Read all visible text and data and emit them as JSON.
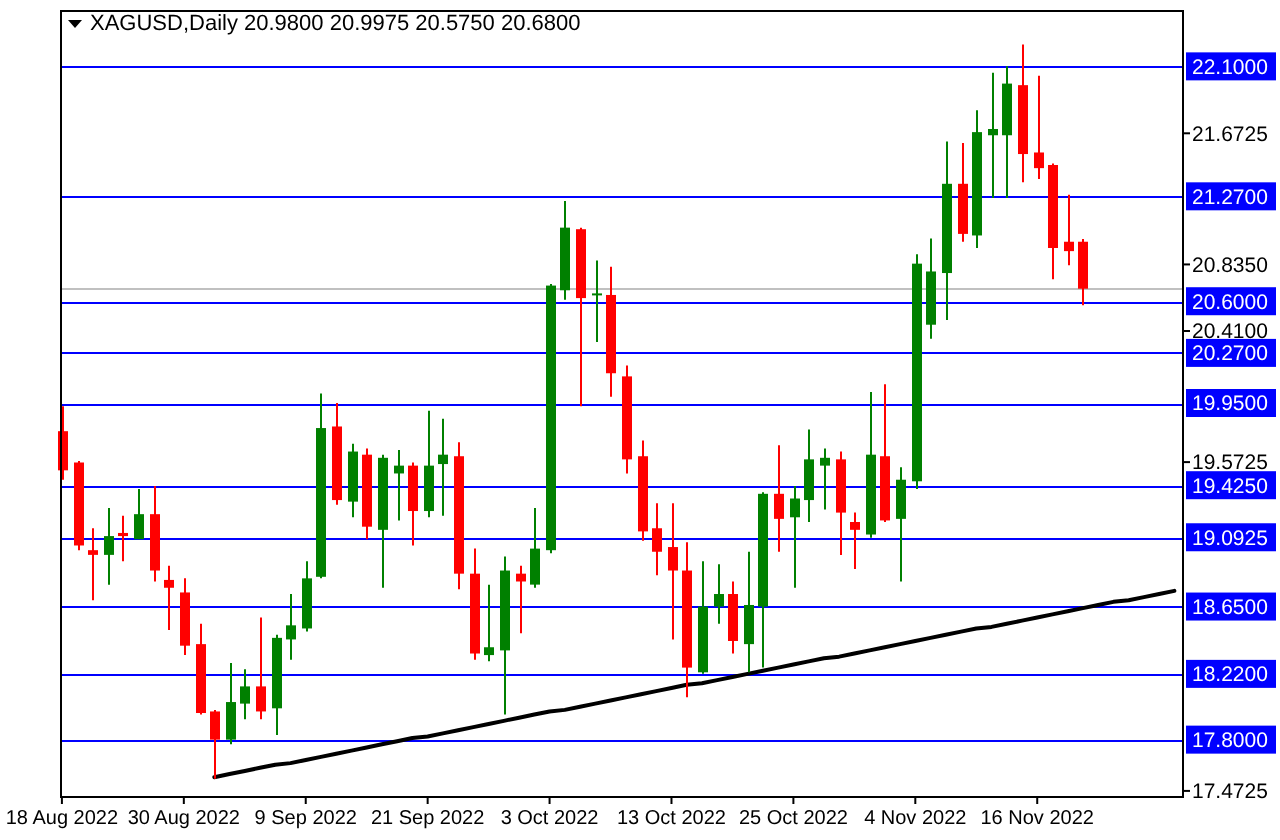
{
  "chart_data": {
    "type": "candlestick",
    "title": "XAGUSD,Daily 20.9800 20.9975 20.5750 20.6800",
    "categories": [
      "18 Aug 2022",
      null,
      null,
      null,
      null,
      null,
      null,
      null,
      "30 Aug 2022",
      null,
      null,
      null,
      null,
      null,
      null,
      null,
      "9 Sep 2022",
      null,
      null,
      null,
      null,
      null,
      null,
      null,
      "21 Sep 2022",
      null,
      null,
      null,
      null,
      null,
      null,
      null,
      "3 Oct 2022",
      null,
      null,
      null,
      null,
      null,
      null,
      null,
      "13 Oct 2022",
      null,
      null,
      null,
      null,
      null,
      null,
      null,
      "25 Oct 2022",
      null,
      null,
      null,
      null,
      null,
      null,
      null,
      "4 Nov 2022",
      null,
      null,
      null,
      null,
      null,
      null,
      null,
      "16 Nov 2022",
      null,
      null,
      null,
      null,
      null,
      null,
      null,
      null,
      null
    ],
    "ohlc": [
      [
        19.77,
        19.93,
        19.46,
        19.52
      ],
      [
        19.57,
        19.58,
        19.01,
        19.04
      ],
      [
        19.01,
        19.15,
        18.69,
        18.98
      ],
      [
        18.98,
        19.28,
        18.79,
        19.1
      ],
      [
        19.12,
        19.23,
        18.94,
        19.1
      ],
      [
        19.08,
        19.4,
        19.08,
        19.24
      ],
      [
        19.24,
        19.42,
        18.81,
        18.88
      ],
      [
        18.82,
        18.91,
        18.5,
        18.77
      ],
      [
        18.74,
        18.83,
        18.34,
        18.4
      ],
      [
        18.41,
        18.54,
        17.96,
        17.97
      ],
      [
        17.98,
        17.99,
        17.55,
        17.8
      ],
      [
        17.8,
        18.29,
        17.77,
        18.04
      ],
      [
        18.03,
        18.25,
        17.93,
        18.14
      ],
      [
        18.14,
        18.58,
        17.93,
        17.98
      ],
      [
        18.0,
        18.47,
        17.83,
        18.45
      ],
      [
        18.44,
        18.73,
        18.31,
        18.53
      ],
      [
        18.51,
        18.94,
        18.49,
        18.83
      ],
      [
        18.84,
        20.01,
        18.83,
        19.79
      ],
      [
        19.8,
        19.95,
        19.3,
        19.33
      ],
      [
        19.32,
        19.69,
        19.22,
        19.64
      ],
      [
        19.62,
        19.66,
        19.08,
        19.16
      ],
      [
        19.14,
        19.62,
        18.77,
        19.6
      ],
      [
        19.5,
        19.65,
        19.2,
        19.55
      ],
      [
        19.55,
        19.57,
        19.04,
        19.26
      ],
      [
        19.26,
        19.9,
        19.22,
        19.55
      ],
      [
        19.56,
        19.85,
        19.23,
        19.62
      ],
      [
        19.61,
        19.7,
        18.76,
        18.86
      ],
      [
        18.86,
        19.02,
        18.31,
        18.35
      ],
      [
        18.34,
        18.79,
        18.3,
        18.39
      ],
      [
        18.37,
        18.97,
        17.96,
        18.88
      ],
      [
        18.86,
        18.91,
        18.48,
        18.81
      ],
      [
        18.79,
        19.28,
        18.77,
        19.02
      ],
      [
        19.01,
        20.71,
        18.99,
        20.7
      ],
      [
        20.67,
        21.24,
        20.61,
        21.07
      ],
      [
        21.06,
        21.07,
        19.93,
        20.62
      ],
      [
        20.64,
        20.86,
        20.34,
        20.65
      ],
      [
        20.64,
        20.82,
        19.99,
        20.14
      ],
      [
        20.12,
        20.19,
        19.5,
        19.59
      ],
      [
        19.61,
        19.71,
        19.07,
        19.13
      ],
      [
        19.15,
        19.31,
        18.85,
        19.0
      ],
      [
        19.03,
        19.31,
        18.44,
        18.88
      ],
      [
        18.88,
        19.06,
        18.07,
        18.26
      ],
      [
        18.23,
        18.94,
        18.22,
        18.65
      ],
      [
        18.65,
        18.92,
        18.54,
        18.73
      ],
      [
        18.73,
        18.81,
        18.35,
        18.43
      ],
      [
        18.41,
        19.0,
        18.23,
        18.66
      ],
      [
        18.65,
        19.38,
        18.26,
        19.37
      ],
      [
        19.37,
        19.68,
        19.0,
        19.21
      ],
      [
        19.22,
        19.42,
        18.77,
        19.34
      ],
      [
        19.33,
        19.78,
        19.19,
        19.59
      ],
      [
        19.55,
        19.66,
        19.27,
        19.6
      ],
      [
        19.59,
        19.64,
        18.98,
        19.25
      ],
      [
        19.19,
        19.25,
        18.89,
        19.14
      ],
      [
        19.11,
        20.02,
        19.09,
        19.62
      ],
      [
        19.61,
        20.07,
        19.19,
        19.2
      ],
      [
        19.21,
        19.54,
        18.81,
        19.46
      ],
      [
        19.45,
        20.9,
        19.4,
        20.84
      ],
      [
        20.45,
        21.0,
        20.36,
        20.79
      ],
      [
        20.78,
        21.62,
        20.48,
        21.35
      ],
      [
        21.35,
        21.61,
        20.98,
        21.03
      ],
      [
        21.02,
        21.82,
        20.94,
        21.68
      ],
      [
        21.66,
        22.06,
        21.26,
        21.7
      ],
      [
        21.66,
        22.1,
        21.26,
        21.99
      ],
      [
        21.98,
        22.24,
        21.36,
        21.54
      ],
      [
        21.55,
        22.04,
        21.38,
        21.45
      ],
      [
        21.47,
        21.48,
        20.74,
        20.94
      ],
      [
        20.98,
        21.28,
        20.83,
        20.92
      ],
      [
        20.98,
        20.9975,
        20.575,
        20.68
      ],
      null,
      null,
      null,
      null,
      null,
      null
    ],
    "series": [
      {
        "type": "line",
        "color": "#000000",
        "values": [
          null,
          null,
          null,
          null,
          null,
          null,
          null,
          null,
          null,
          null,
          17.56,
          17.58,
          17.6,
          17.62,
          17.64,
          17.65,
          17.67,
          17.69,
          17.71,
          17.73,
          17.75,
          17.77,
          17.79,
          17.81,
          17.82,
          17.84,
          17.86,
          17.88,
          17.9,
          17.92,
          17.94,
          17.96,
          17.98,
          17.99,
          18.01,
          18.03,
          18.05,
          18.07,
          18.09,
          18.11,
          18.13,
          18.15,
          18.16,
          18.18,
          18.2,
          18.22,
          18.24,
          18.26,
          18.28,
          18.3,
          18.32,
          18.33,
          18.35,
          18.37,
          18.39,
          18.41,
          18.43,
          18.45,
          18.47,
          18.49,
          18.51,
          18.52,
          18.54,
          18.56,
          18.58,
          18.6,
          18.62,
          18.64,
          18.66,
          18.68,
          18.69,
          18.71,
          18.73,
          18.75
        ]
      }
    ],
    "ylim": [
      17.44,
      22.46
    ],
    "yticks": [
      {
        "value": 21.6725,
        "label": "21.6725"
      },
      {
        "value": 20.835,
        "label": "20.8350"
      },
      {
        "value": 20.41,
        "label": "20.4100"
      },
      {
        "value": 19.5725,
        "label": "19.5725"
      },
      {
        "value": 17.4725,
        "label": "17.4725"
      }
    ],
    "ref_lines": [
      {
        "axis": "y",
        "value": 22.1,
        "label": "22.1000",
        "color": "#0000ff"
      },
      {
        "axis": "y",
        "value": 21.27,
        "label": "21.2700",
        "color": "#0000ff"
      },
      {
        "axis": "y",
        "value": 20.68,
        "color": "#c0c0c0"
      },
      {
        "axis": "y",
        "value": 20.6,
        "label": "20.6000",
        "color": "#0000ff"
      },
      {
        "axis": "y",
        "value": 20.27,
        "label": "20.2700",
        "color": "#0000ff"
      },
      {
        "axis": "y",
        "value": 19.95,
        "label": "19.9500",
        "color": "#0000ff"
      },
      {
        "axis": "y",
        "value": 19.425,
        "label": "19.4250",
        "color": "#0000ff"
      },
      {
        "axis": "y",
        "value": 19.0925,
        "label": "19.0925",
        "color": "#0000ff"
      },
      {
        "axis": "y",
        "value": 18.65,
        "label": "18.6500",
        "color": "#0000ff"
      },
      {
        "axis": "y",
        "value": 18.22,
        "label": "18.2200",
        "color": "#0000ff"
      },
      {
        "axis": "y",
        "value": 17.8,
        "label": "17.8000",
        "color": "#0000ff"
      }
    ],
    "grid": false
  }
}
